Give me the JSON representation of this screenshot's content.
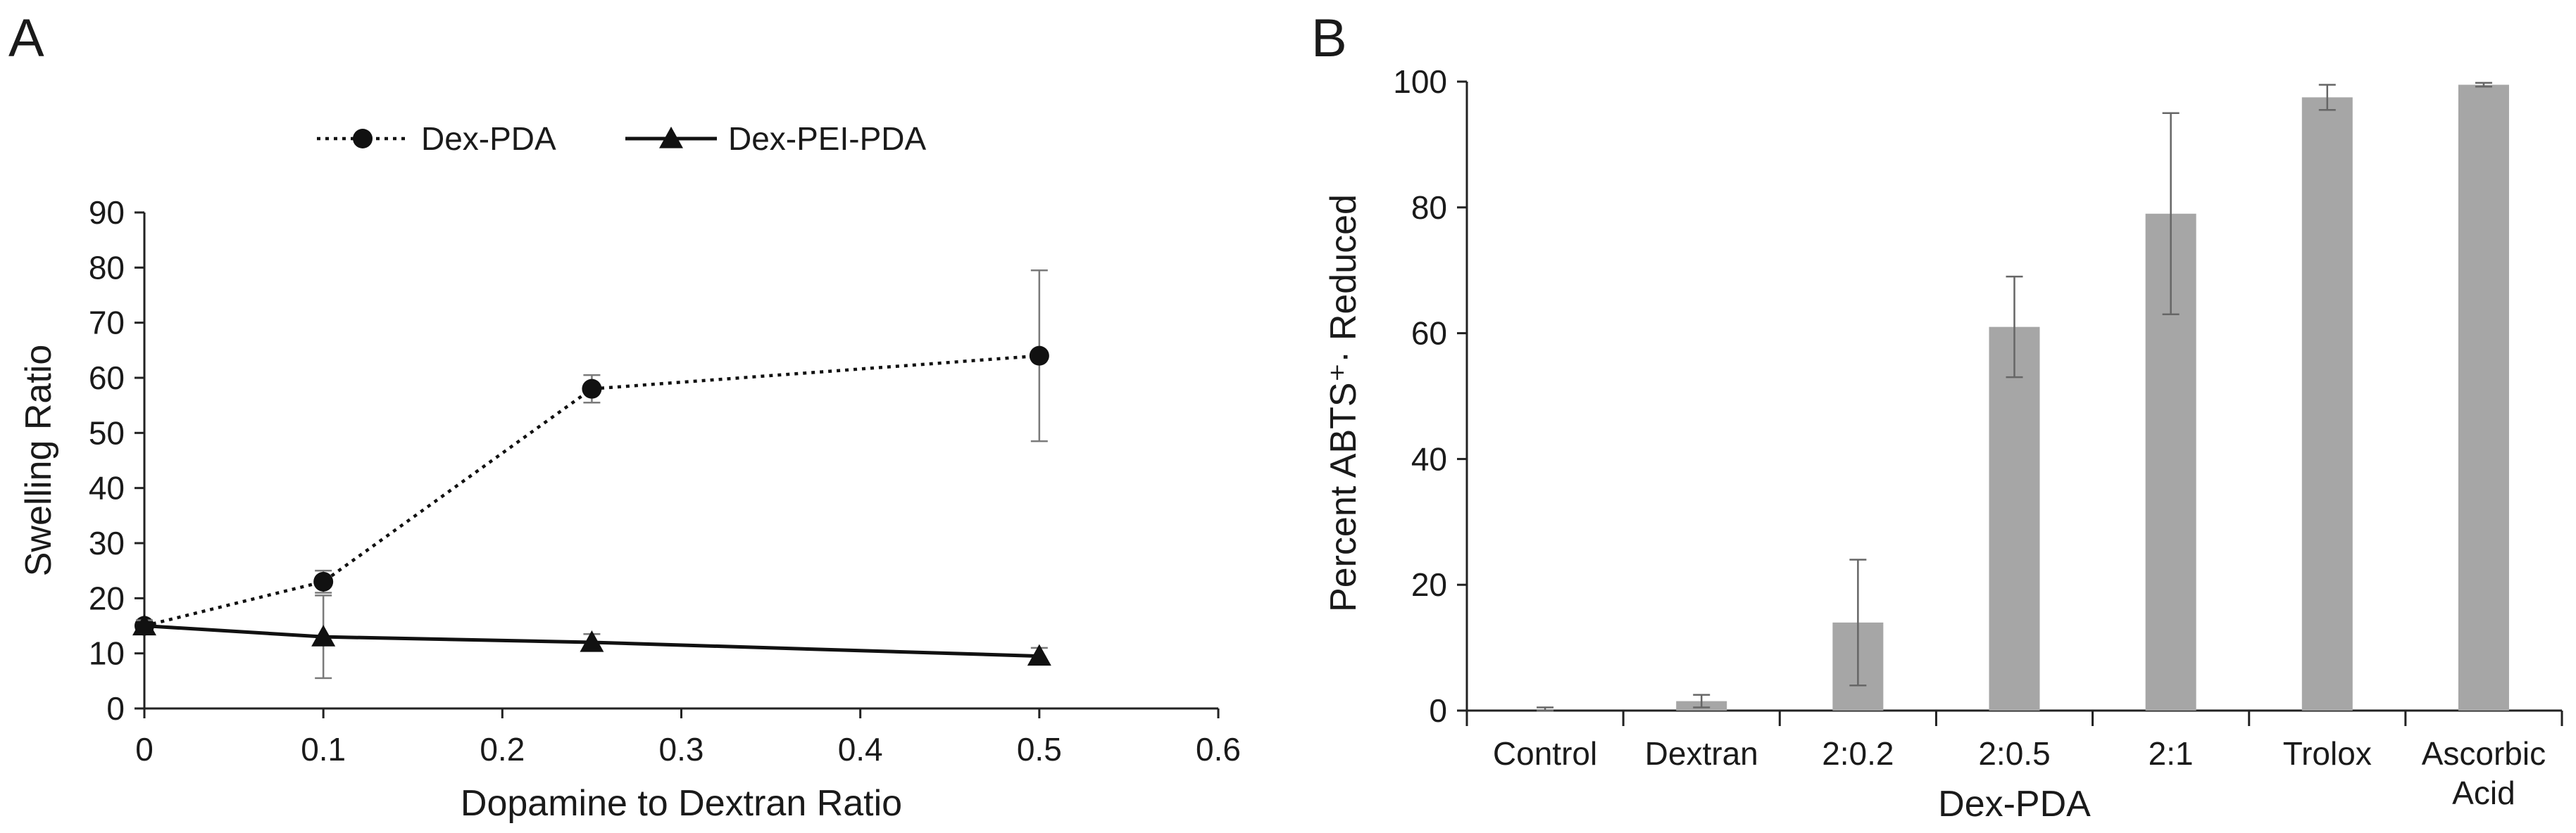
{
  "figure": {
    "panel_a_label": "A",
    "panel_b_label": "B"
  },
  "chart_data": [
    {
      "type": "line",
      "panel": "A",
      "title": "",
      "xlabel": "Dopamine to Dextran Ratio",
      "ylabel": "Swelling Ratio",
      "xlim": [
        0,
        0.6
      ],
      "ylim": [
        0,
        90
      ],
      "xticks": [
        0,
        0.1,
        0.2,
        0.3,
        0.4,
        0.5,
        0.6
      ],
      "xtick_labels": [
        "0",
        "0.1",
        "0.2",
        "0.3",
        "0.4",
        "0.5",
        "0.6"
      ],
      "yticks": [
        0,
        10,
        20,
        30,
        40,
        50,
        60,
        70,
        80,
        90
      ],
      "ytick_labels": [
        "0",
        "10",
        "20",
        "30",
        "40",
        "50",
        "60",
        "70",
        "80",
        "90"
      ],
      "grid": false,
      "legend_position": "top",
      "series": [
        {
          "name": "Dex-PDA",
          "style": "dotted",
          "marker": "circle",
          "color": "#111111",
          "x": [
            0,
            0.1,
            0.25,
            0.5
          ],
          "y": [
            15,
            23,
            58,
            64
          ],
          "err": [
            1,
            2,
            2.5,
            15.5
          ]
        },
        {
          "name": "Dex-PEI-PDA",
          "style": "solid",
          "marker": "triangle",
          "color": "#111111",
          "x": [
            0,
            0.1,
            0.25,
            0.5
          ],
          "y": [
            15,
            13,
            12,
            9.5
          ],
          "err": [
            1,
            7.5,
            1.5,
            1.5
          ]
        }
      ]
    },
    {
      "type": "bar",
      "panel": "B",
      "title": "",
      "xlabel": "Dex-PDA",
      "ylabel": "Percent ABTS⁺· Reduced",
      "ylim": [
        0,
        100
      ],
      "yticks": [
        0,
        20,
        40,
        60,
        80,
        100
      ],
      "ytick_labels": [
        "0",
        "20",
        "40",
        "60",
        "80",
        "100"
      ],
      "grid": false,
      "bar_color": "#a6a6a6",
      "categories": [
        "Control",
        "Dextran",
        "2:0.2",
        "2:0.5",
        "2:1",
        "Trolox",
        "Ascorbic Acid"
      ],
      "category_lines": [
        [
          "Control"
        ],
        [
          "Dextran"
        ],
        [
          "2:0.2"
        ],
        [
          "2:0.5"
        ],
        [
          "2:1"
        ],
        [
          "Trolox"
        ],
        [
          "Ascorbic",
          "Acid"
        ]
      ],
      "values": [
        0,
        1.5,
        14,
        61,
        79,
        97.5,
        99.5
      ],
      "err": [
        0.5,
        1,
        10,
        8,
        16,
        2,
        0.3
      ]
    }
  ]
}
